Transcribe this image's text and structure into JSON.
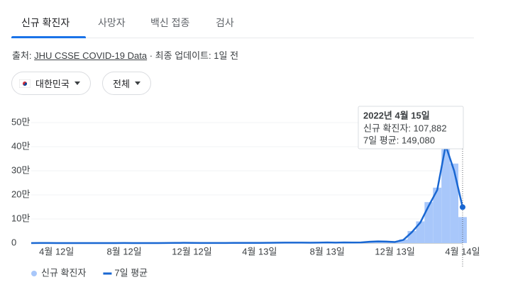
{
  "tabs": [
    "신규 확진자",
    "사망자",
    "백신 접종",
    "검사"
  ],
  "source": {
    "prefix": "출처:",
    "link": "JHU CSSE COVID-19 Data",
    "suffix": "· 최종 업데이트: 1일 전"
  },
  "filters": [
    "대한민국",
    "전체"
  ],
  "chart_data": {
    "type": "combo",
    "categories": [
      null,
      null,
      null,
      "4월 12일",
      null,
      null,
      null,
      null,
      null,
      null,
      null,
      "8월 12일",
      null,
      null,
      null,
      null,
      null,
      null,
      null,
      "12월 12일",
      null,
      null,
      null,
      null,
      null,
      null,
      null,
      "4월 13일",
      null,
      null,
      null,
      null,
      null,
      null,
      null,
      "8월 13일",
      null,
      null,
      null,
      null,
      null,
      null,
      null,
      "12월 13일",
      null,
      null,
      null,
      null,
      null,
      null,
      null,
      "4월 14일"
    ],
    "series": [
      {
        "name": "신규 확진자",
        "type": "bar",
        "color": "#a8c7fa",
        "values": [
          0,
          500,
          300,
          30,
          10,
          20,
          40,
          40,
          50,
          60,
          150,
          250,
          100,
          80,
          100,
          120,
          300,
          600,
          1000,
          800,
          500,
          400,
          400,
          500,
          600,
          700,
          600,
          700,
          1200,
          1500,
          1800,
          2000,
          1700,
          1600,
          2000,
          2500,
          1800,
          2500,
          2000,
          2500,
          6000,
          7500,
          6000,
          4000,
          15000,
          50000,
          90000,
          170000,
          230000,
          400000,
          330000,
          107882
        ]
      },
      {
        "name": "7일 평균",
        "type": "line",
        "color": "#1967d2",
        "values": [
          0,
          400,
          300,
          40,
          10,
          20,
          40,
          40,
          50,
          60,
          140,
          230,
          110,
          80,
          100,
          120,
          280,
          580,
          950,
          820,
          520,
          420,
          420,
          480,
          580,
          680,
          620,
          680,
          1100,
          1450,
          1750,
          1950,
          1750,
          1650,
          1900,
          2400,
          1850,
          2400,
          2050,
          2500,
          5500,
          7000,
          6200,
          4500,
          13000,
          45000,
          85000,
          155000,
          220000,
          405000,
          300000,
          149080
        ]
      }
    ],
    "ylim": [
      0,
      500000
    ],
    "yticks": [
      0,
      {
        "value": 100000,
        "label": "10만"
      },
      {
        "value": 200000,
        "label": "20만"
      },
      {
        "value": 300000,
        "label": "30만"
      },
      {
        "value": 400000,
        "label": "40만"
      },
      {
        "value": 500000,
        "label": "50만"
      }
    ],
    "grid": true,
    "tooltip": {
      "title": "2022년 4월 15일",
      "lines": [
        "신규 확진자: 107,882",
        "7일 평균: 149,080"
      ]
    }
  }
}
